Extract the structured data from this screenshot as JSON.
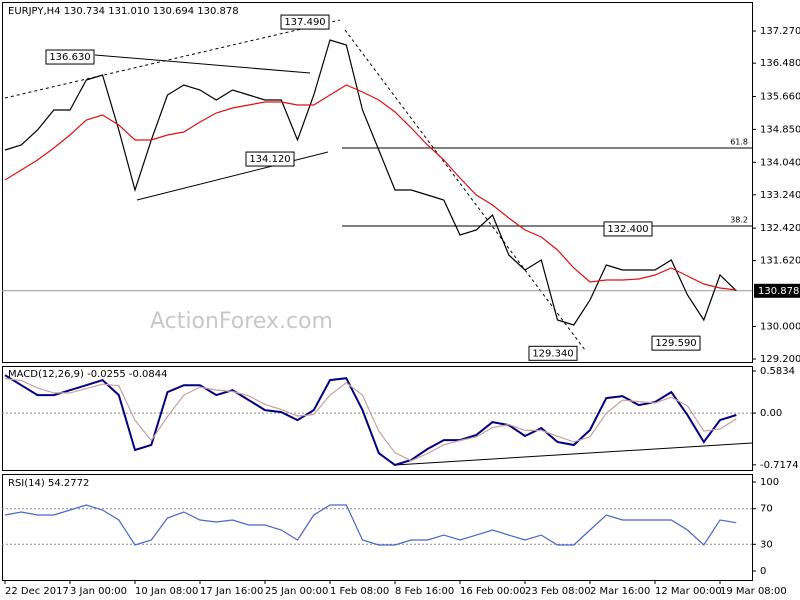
{
  "chart_data": [
    {
      "type": "line",
      "title": "EURJPY,H4  130.734 131.010 130.694 130.878",
      "watermark": "ActionForex.com",
      "categories": [
        "22 Dec 2017",
        null,
        null,
        null,
        "3 Jan 00:00",
        null,
        null,
        null,
        "10 Jan 08:00",
        null,
        null,
        null,
        "17 Jan 16:00",
        null,
        null,
        null,
        "25 Jan 00:00",
        null,
        null,
        null,
        "1 Feb 08:00",
        null,
        null,
        null,
        "8 Feb 16:00",
        null,
        null,
        null,
        "16 Feb 00:00",
        null,
        null,
        null,
        "23 Feb 08:00",
        null,
        null,
        null,
        "2 Mar 16:00",
        null,
        null,
        null,
        "12 Mar 00:00",
        null,
        null,
        null,
        "19 Mar 08:00",
        null
      ],
      "series": [
        {
          "color": "#000000",
          "values": [
            134.342,
            134.465,
            134.834,
            135.326,
            135.326,
            136.064,
            136.187,
            134.834,
            133.358,
            134.588,
            135.695,
            135.941,
            135.818,
            135.572,
            135.818,
            135.695,
            135.572,
            135.572,
            134.588,
            135.695,
            137.049,
            136.926,
            135.326,
            134.342,
            133.358,
            133.358,
            133.235,
            133.112,
            132.25,
            132.373,
            132.742,
            131.758,
            131.389,
            131.635,
            130.159,
            130.036,
            130.651,
            131.512,
            131.389,
            131.389,
            131.389,
            131.635,
            130.774,
            130.159,
            131.266,
            130.878
          ]
        },
        {
          "color": "#e01010",
          "values": [
            133.604,
            133.85,
            134.096,
            134.391,
            134.711,
            135.08,
            135.203,
            134.957,
            134.588,
            134.588,
            134.711,
            134.785,
            135.031,
            135.252,
            135.375,
            135.449,
            135.523,
            135.523,
            135.449,
            135.449,
            135.695,
            135.941,
            135.769,
            135.572,
            135.277,
            134.883,
            134.465,
            134.096,
            133.653,
            133.235,
            132.989,
            132.669,
            132.373,
            132.201,
            131.881,
            131.438,
            131.094,
            131.143,
            131.143,
            131.168,
            131.266,
            131.438,
            131.241,
            131.045,
            130.946,
            130.897
          ]
        }
      ],
      "ylim": [
        129.126,
        137.984
      ],
      "yticks": [
        {
          "value": 137.27,
          "label": "137.270"
        },
        {
          "value": 136.48,
          "label": "136.480"
        },
        {
          "value": 135.66,
          "label": "135.660"
        },
        {
          "value": 134.85,
          "label": "134.850"
        },
        {
          "value": 134.04,
          "label": "134.040"
        },
        {
          "value": 133.24,
          "label": "133.240"
        },
        {
          "value": 132.42,
          "label": "132.420"
        },
        {
          "value": 131.62,
          "label": "131.620"
        },
        {
          "value": 130,
          "label": "130.000"
        },
        {
          "value": 129.2,
          "label": "129.200"
        }
      ],
      "last_price": 130.878,
      "levels": [
        {
          "value": 134.391,
          "label": "61.8"
        },
        {
          "value": 132.472,
          "label": "38.2"
        }
      ],
      "annotations": [
        {
          "value": 136.63,
          "label": "136.630"
        },
        {
          "value": 137.49,
          "label": "137.490"
        },
        {
          "value": 134.12,
          "label": "134.120"
        },
        {
          "value": 132.4,
          "label": "132.400"
        },
        {
          "value": 129.34,
          "label": "129.340"
        },
        {
          "value": 129.59,
          "label": "129.590"
        }
      ]
    },
    {
      "type": "line",
      "title": "MACD(12,26,9) -0.0255 -0.0844",
      "series": [
        {
          "color": "#000080",
          "values": [
            0.526,
            0.387,
            0.249,
            0.249,
            0.318,
            0.387,
            0.457,
            0.249,
            -0.512,
            -0.443,
            0.291,
            0.387,
            0.387,
            0.249,
            0.318,
            0.18,
            0.042,
            0.014,
            -0.097,
            0.042,
            0.457,
            0.484,
            0.042,
            -0.554,
            -0.72,
            -0.65,
            -0.498,
            -0.374,
            -0.374,
            -0.304,
            -0.125,
            -0.166,
            -0.318,
            -0.208,
            -0.401,
            -0.443,
            -0.235,
            0.208,
            0.235,
            0.111,
            0.152,
            0.291,
            -0.028,
            -0.401,
            -0.097,
            -0.026
          ]
        },
        {
          "color": "#c8a0a0",
          "values": [
            0.48,
            0.45,
            0.35,
            0.28,
            0.28,
            0.34,
            0.4,
            0.38,
            -0.1,
            -0.38,
            -0.05,
            0.25,
            0.36,
            0.32,
            0.3,
            0.24,
            0.12,
            0.05,
            -0.04,
            -0.02,
            0.25,
            0.42,
            0.25,
            -0.25,
            -0.55,
            -0.66,
            -0.56,
            -0.44,
            -0.38,
            -0.33,
            -0.2,
            -0.16,
            -0.24,
            -0.24,
            -0.32,
            -0.4,
            -0.33,
            0,
            0.18,
            0.16,
            0.14,
            0.22,
            0.1,
            -0.25,
            -0.22,
            -0.08
          ]
        }
      ],
      "ylim": [
        -0.789,
        0.653
      ],
      "yticks": [
        0.5834,
        {
          "value": 0,
          "label": "0.00"
        },
        -0.7174
      ],
      "levels": [
        0
      ]
    },
    {
      "type": "line",
      "title": "RSI(14) 54.2772",
      "series": [
        {
          "color": "#4a66c8",
          "values": [
            62.9,
            66.3,
            62.9,
            62.9,
            68.5,
            74.2,
            68.5,
            57.3,
            29.2,
            34.8,
            59.6,
            66.3,
            57.3,
            55.1,
            57.3,
            51.7,
            51.7,
            46.1,
            34.8,
            62.9,
            74.2,
            74.2,
            34.8,
            29.2,
            29.2,
            34.8,
            34.8,
            40.4,
            34.8,
            40.4,
            46.1,
            40.4,
            34.8,
            40.4,
            29.2,
            29.2,
            46.1,
            62.9,
            57.3,
            57.3,
            57.3,
            57.3,
            46.1,
            29.2,
            57.3,
            54.3
          ]
        }
      ],
      "ylim": [
        -10.1,
        109
      ],
      "yticks": [
        100,
        70,
        30,
        0
      ],
      "levels": [
        70,
        30
      ]
    }
  ]
}
